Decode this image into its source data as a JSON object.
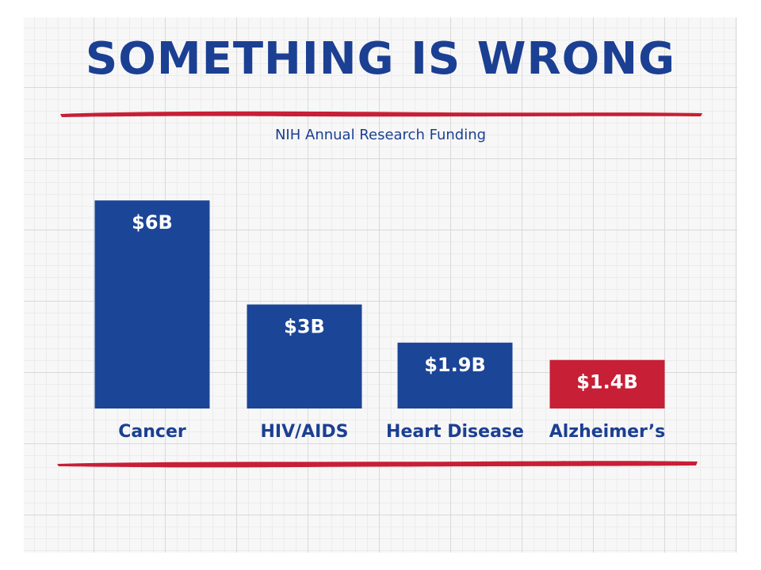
{
  "headline": "SOMETHING IS WRONG",
  "chart_data": {
    "type": "bar",
    "title": "NIH Annual Research Funding",
    "xlabel": "",
    "ylabel": "",
    "categories": [
      "Cancer",
      "HIV/AIDS",
      "Heart Disease",
      "Alzheimer’s"
    ],
    "values": [
      6,
      3,
      1.9,
      1.4
    ],
    "unit": "billion USD",
    "data_labels": [
      "$6B",
      "$3B",
      "$1.9B",
      "$1.4B"
    ],
    "bar_colors": [
      "#1b4597",
      "#1b4597",
      "#1b4597",
      "#c71f36"
    ],
    "ylim": [
      0,
      6.05
    ],
    "grid": false,
    "legend": "none"
  },
  "colors": {
    "brand_blue": "#1b3f92",
    "accent_red": "#c71f36",
    "label_text": "#ffffff"
  }
}
